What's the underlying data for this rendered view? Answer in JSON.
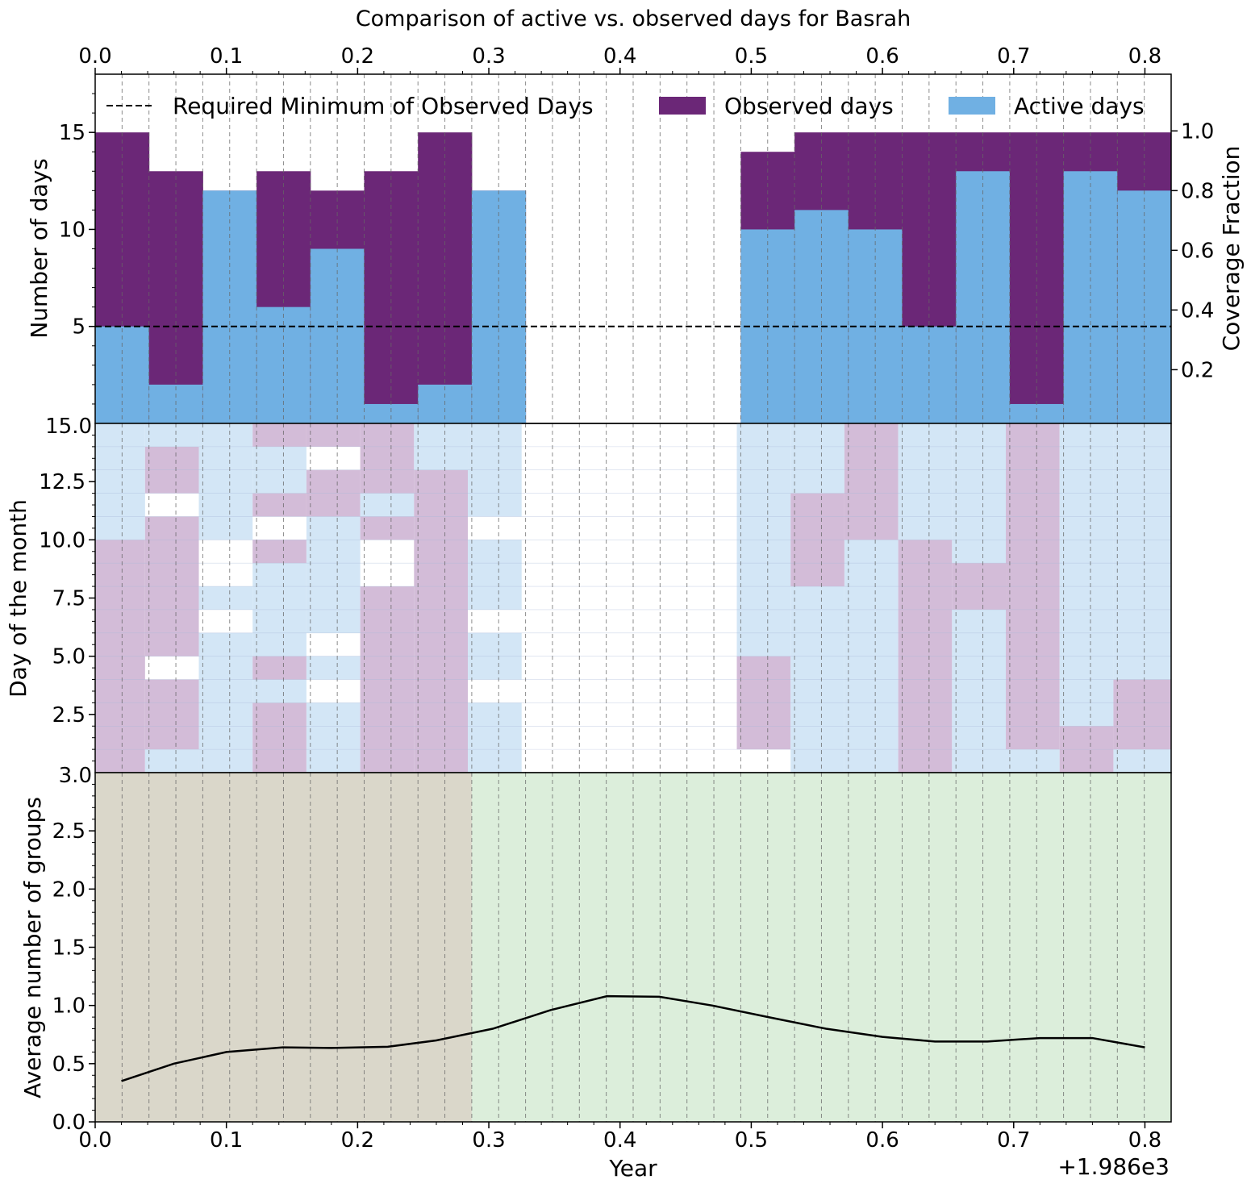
{
  "title": "Comparison of active vs. observed days for Basrah",
  "colors": {
    "observed": "#6b2777",
    "active": "#70b0e3",
    "observed_light": "#d3bcd8",
    "active_light": "#d3e6f6",
    "bg_left": "#dad7ca",
    "bg_right": "#dceedb",
    "line": "#000000"
  },
  "chart_data": [
    {
      "type": "bar",
      "panel": "top",
      "title": "Comparison of active vs. observed days for Basrah",
      "ylabel": "Number of days",
      "ylabel_right": "Coverage Fraction",
      "xlim": [
        0,
        0.82
      ],
      "ylim": [
        0,
        18
      ],
      "ylim_right": [
        0.02,
        1.19
      ],
      "xticks": [
        "0.0",
        "0.1",
        "0.2",
        "0.3",
        "0.4",
        "0.5",
        "0.6",
        "0.7",
        "0.8"
      ],
      "yticks": [
        "5",
        "10",
        "15"
      ],
      "yticks_right": [
        "0.2",
        "0.4",
        "0.6",
        "0.8",
        "1.0"
      ],
      "bin_edges": [
        0.0,
        0.041,
        0.082,
        0.123,
        0.164,
        0.205,
        0.246,
        0.287,
        0.328,
        0.369,
        0.41,
        0.451,
        0.492,
        0.533,
        0.574,
        0.615,
        0.656,
        0.697,
        0.738,
        0.779,
        0.82
      ],
      "series": [
        {
          "name": "Observed days",
          "values": [
            15,
            13,
            12,
            13,
            12,
            13,
            15,
            12,
            0,
            0,
            0,
            0,
            14,
            15,
            15,
            15,
            15,
            15,
            15,
            15
          ]
        },
        {
          "name": "Active days",
          "values": [
            5,
            2,
            12,
            6,
            9,
            1,
            2,
            12,
            0,
            0,
            0,
            0,
            10,
            11,
            10,
            5,
            13,
            1,
            13,
            12
          ]
        }
      ],
      "hline": {
        "y": 5,
        "label": "Required Minimum of Observed Days"
      },
      "legend": "top",
      "grid": "vertical dashed"
    },
    {
      "type": "heatmap",
      "panel": "middle",
      "ylabel": "Day of the month",
      "ylim": [
        0,
        15
      ],
      "yticks": [
        "2.5",
        "5.0",
        "7.5",
        "10.0",
        "12.5"
      ],
      "overlap_labels": [
        "15.0",
        "3.0"
      ],
      "legend": "none"
    },
    {
      "type": "line",
      "panel": "bottom",
      "xlabel": "Year",
      "offset_label": "+1.986e3",
      "ylabel": "Average number of groups",
      "xlim": [
        0,
        0.82
      ],
      "ylim": [
        0,
        3.0
      ],
      "xticks": [
        "0.0",
        "0.1",
        "0.2",
        "0.3",
        "0.4",
        "0.5",
        "0.6",
        "0.7",
        "0.8"
      ],
      "yticks": [
        "0.0",
        "0.5",
        "1.0",
        "1.5",
        "2.0",
        "2.5"
      ],
      "x": [
        0.02,
        0.06,
        0.1,
        0.143,
        0.18,
        0.223,
        0.26,
        0.303,
        0.347,
        0.39,
        0.43,
        0.47,
        0.513,
        0.557,
        0.6,
        0.64,
        0.68,
        0.72,
        0.76,
        0.8
      ],
      "y": [
        0.35,
        0.5,
        0.6,
        0.64,
        0.635,
        0.645,
        0.7,
        0.8,
        0.96,
        1.08,
        1.075,
        1.0,
        0.9,
        0.8,
        0.73,
        0.69,
        0.69,
        0.72,
        0.72,
        0.64
      ],
      "shaded_regions": [
        {
          "x": [
            0,
            0.287
          ],
          "color": "bg_left"
        },
        {
          "x": [
            0.287,
            0.82
          ],
          "color": "bg_right"
        }
      ],
      "grid": "vertical dashed"
    }
  ]
}
